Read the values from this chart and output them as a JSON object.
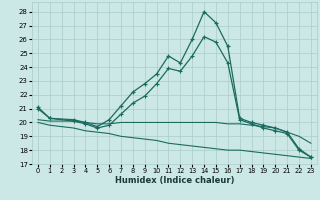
{
  "xlabel": "Humidex (Indice chaleur)",
  "bg_color": "#cce8e6",
  "grid_color": "#aacccc",
  "line_color": "#1a6b5e",
  "xlim": [
    -0.5,
    23.5
  ],
  "ylim": [
    17,
    28.7
  ],
  "yticks": [
    17,
    18,
    19,
    20,
    21,
    22,
    23,
    24,
    25,
    26,
    27,
    28
  ],
  "xticks": [
    0,
    1,
    2,
    3,
    4,
    5,
    6,
    7,
    8,
    9,
    10,
    11,
    12,
    13,
    14,
    15,
    16,
    17,
    18,
    19,
    20,
    21,
    22,
    23
  ],
  "line1_x": [
    0,
    1,
    3,
    4,
    5,
    6,
    7,
    8,
    9,
    10,
    11,
    12,
    13,
    14,
    15,
    16,
    17,
    18,
    19,
    20,
    21,
    22,
    23
  ],
  "line1_y": [
    21.1,
    20.3,
    20.2,
    20.0,
    19.7,
    20.2,
    21.2,
    22.2,
    22.8,
    23.5,
    24.8,
    24.3,
    26.0,
    28.0,
    27.2,
    25.5,
    20.3,
    20.0,
    19.8,
    19.6,
    19.3,
    18.1,
    17.5
  ],
  "line2_x": [
    0,
    1,
    3,
    4,
    5,
    6,
    7,
    8,
    9,
    10,
    11,
    12,
    13,
    14,
    15,
    16,
    17,
    18,
    19,
    20,
    21,
    22,
    23
  ],
  "line2_y": [
    21.0,
    20.3,
    20.1,
    19.9,
    19.6,
    19.8,
    20.6,
    21.4,
    21.9,
    22.8,
    23.9,
    23.7,
    24.8,
    26.2,
    25.8,
    24.3,
    20.2,
    19.9,
    19.6,
    19.4,
    19.2,
    18.0,
    17.5
  ],
  "line3_x": [
    0,
    1,
    2,
    3,
    4,
    5,
    6,
    7,
    8,
    9,
    10,
    11,
    12,
    13,
    14,
    15,
    16,
    17,
    18,
    19,
    20,
    21,
    22,
    23
  ],
  "line3_y": [
    20.2,
    20.1,
    20.1,
    20.1,
    20.0,
    19.9,
    19.9,
    20.0,
    20.0,
    20.0,
    20.0,
    20.0,
    20.0,
    20.0,
    20.0,
    20.0,
    19.9,
    19.9,
    19.8,
    19.7,
    19.6,
    19.3,
    19.0,
    18.5
  ],
  "line4_x": [
    0,
    1,
    2,
    3,
    4,
    5,
    6,
    7,
    8,
    9,
    10,
    11,
    12,
    13,
    14,
    15,
    16,
    17,
    18,
    19,
    20,
    21,
    22,
    23
  ],
  "line4_y": [
    20.0,
    19.8,
    19.7,
    19.6,
    19.4,
    19.3,
    19.2,
    19.0,
    18.9,
    18.8,
    18.7,
    18.5,
    18.4,
    18.3,
    18.2,
    18.1,
    18.0,
    18.0,
    17.9,
    17.8,
    17.7,
    17.6,
    17.5,
    17.4
  ]
}
